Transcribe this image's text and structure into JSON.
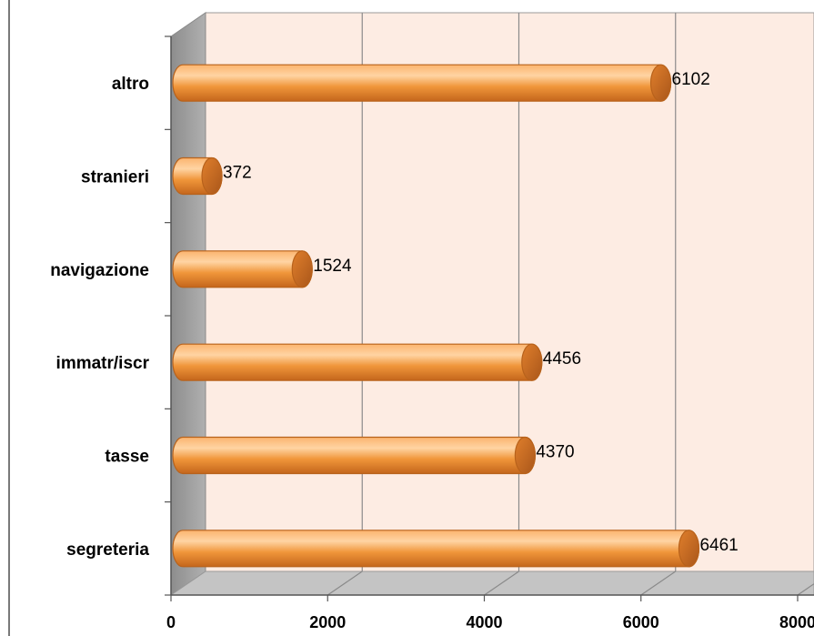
{
  "chart_data": {
    "type": "bar",
    "orientation": "horizontal",
    "categories": [
      "segreteria",
      "tasse",
      "immatr/iscr",
      "navigazione",
      "stranieri",
      "altro"
    ],
    "series": [
      {
        "values": [
          6461,
          4370,
          4456,
          1524,
          372,
          6102
        ]
      }
    ],
    "xlim": [
      0,
      8000
    ],
    "x_ticks": [
      "0",
      "2000",
      "4000",
      "6000",
      "8000"
    ],
    "data_labels": [
      "6461",
      "4370",
      "4456",
      "1524",
      "372",
      "6102"
    ],
    "grid": true,
    "legend": "none",
    "style": "3d-cylinder"
  },
  "colors": {
    "bar": "#f0963a",
    "bar_light": "#ffd7a8",
    "bar_dark": "#b8621b",
    "back_wall": "#fdece3",
    "side_wall": "#9f9f9f",
    "floor": "#c4c4c4",
    "grid": "#8a8a8a"
  }
}
